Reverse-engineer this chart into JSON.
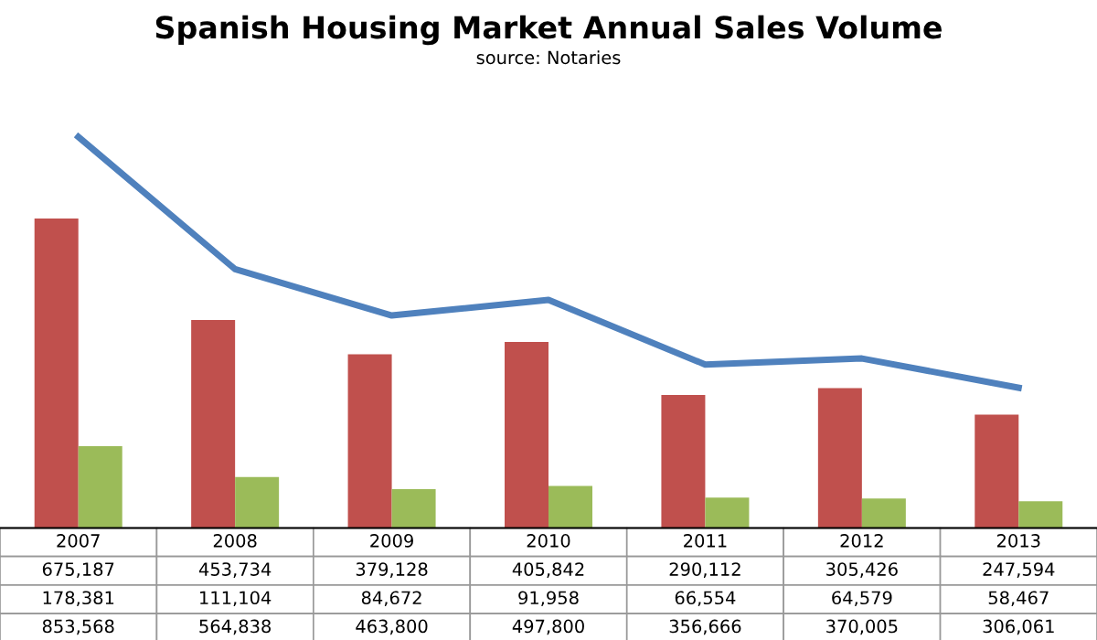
{
  "chart_data": {
    "type": "bar",
    "title": "Spanish Housing Market Annual Sales Volume",
    "subtitle": "source: Notaries",
    "categories": [
      "2007",
      "2008",
      "2009",
      "2010",
      "2011",
      "2012",
      "2013"
    ],
    "series": [
      {
        "color": "#c0504d",
        "values": [
          675187,
          453734,
          379128,
          405842,
          290112,
          305426,
          247594
        ],
        "value_labels": [
          "675,187",
          "453,734",
          "379,128",
          "405,842",
          "290,112",
          "305,426",
          "247,594"
        ]
      },
      {
        "color": "#9bbb59",
        "values": [
          178381,
          111104,
          84672,
          91958,
          66554,
          64579,
          58467
        ],
        "value_labels": [
          "178,381",
          "111,104",
          "84,672",
          "91,958",
          "66,554",
          "64,579",
          "58,467"
        ]
      },
      {
        "type": "line",
        "color": "#4f81bd",
        "values": [
          853568,
          564838,
          463800,
          497800,
          356666,
          370005,
          306061
        ],
        "value_labels": [
          "853,568",
          "564,838",
          "463,800",
          "497,800",
          "356,666",
          "370,005",
          "306,061"
        ]
      }
    ]
  }
}
